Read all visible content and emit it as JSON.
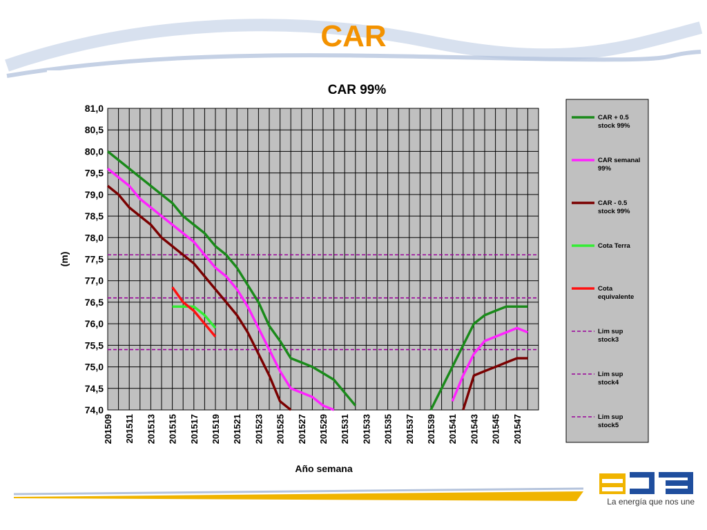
{
  "slide": {
    "title": "CAR",
    "tagline": "La energía que nos une",
    "accent_color": "#f39200"
  },
  "chart_data": {
    "type": "line",
    "title": "CAR 99%",
    "xlabel": "Año semana",
    "ylabel": "(m)",
    "ylim": [
      74.0,
      81.0
    ],
    "yticks": [
      "74,0",
      "74,5",
      "75,0",
      "75,5",
      "76,0",
      "76,5",
      "77,0",
      "77,5",
      "78,0",
      "78,5",
      "79,0",
      "79,5",
      "80,0",
      "80,5",
      "81,0"
    ],
    "categories": [
      "201509",
      "201510",
      "201511",
      "201512",
      "201513",
      "201514",
      "201515",
      "201516",
      "201517",
      "201518",
      "201519",
      "201520",
      "201521",
      "201522",
      "201523",
      "201524",
      "201525",
      "201526",
      "201527",
      "201528",
      "201529",
      "201530",
      "201531",
      "201532",
      "201533",
      "201534",
      "201535",
      "201536",
      "201537",
      "201538",
      "201539",
      "201540",
      "201541",
      "201542",
      "201543",
      "201544",
      "201545",
      "201546",
      "201547",
      "201548"
    ],
    "xtick_labels": [
      "201509",
      "201511",
      "201513",
      "201515",
      "201517",
      "201519",
      "201521",
      "201523",
      "201525",
      "201527",
      "201529",
      "201531",
      "201533",
      "201535",
      "201537",
      "201539",
      "201541",
      "201543",
      "201545",
      "201547"
    ],
    "grid": true,
    "background_color": "#c0c0c0",
    "legend_position": "right",
    "series": [
      {
        "name": "CAR + 0.5 stock 99%",
        "color": "#1a8a1a",
        "style": "solid",
        "values": [
          80.0,
          79.8,
          79.6,
          79.4,
          79.2,
          79.0,
          78.8,
          78.5,
          78.3,
          78.1,
          77.8,
          77.6,
          77.3,
          76.9,
          76.5,
          75.95,
          75.6,
          75.2,
          75.1,
          75.0,
          74.85,
          74.7,
          74.4,
          74.1,
          null,
          null,
          null,
          null,
          null,
          null,
          74.0,
          74.5,
          75.0,
          75.5,
          76.0,
          76.2,
          76.3,
          76.4,
          76.4,
          76.4
        ]
      },
      {
        "name": "CAR semanal 99%",
        "color": "#ff22ff",
        "style": "solid",
        "values": [
          79.6,
          79.4,
          79.2,
          78.9,
          78.7,
          78.5,
          78.3,
          78.1,
          77.9,
          77.6,
          77.3,
          77.1,
          76.8,
          76.4,
          75.9,
          75.4,
          74.9,
          74.5,
          74.4,
          74.3,
          74.1,
          74.0,
          null,
          null,
          null,
          null,
          null,
          null,
          null,
          null,
          null,
          null,
          74.2,
          74.8,
          75.3,
          75.6,
          75.7,
          75.8,
          75.9,
          75.8
        ]
      },
      {
        "name": "CAR - 0.5 stock 99%",
        "color": "#7a0000",
        "style": "solid",
        "values": [
          79.2,
          79.0,
          78.7,
          78.5,
          78.3,
          78.0,
          77.8,
          77.6,
          77.4,
          77.1,
          76.8,
          76.5,
          76.2,
          75.8,
          75.3,
          74.8,
          74.2,
          74.0,
          null,
          null,
          null,
          null,
          null,
          null,
          null,
          null,
          null,
          null,
          null,
          null,
          null,
          null,
          null,
          74.0,
          74.8,
          74.9,
          75.0,
          75.1,
          75.2,
          75.2
        ]
      },
      {
        "name": "Cota Terra",
        "color": "#33ee33",
        "style": "solid",
        "values": [
          null,
          null,
          null,
          null,
          null,
          null,
          76.4,
          76.4,
          76.4,
          76.2,
          75.9,
          null,
          null,
          null,
          null,
          null,
          null,
          null,
          null,
          null,
          null,
          null,
          null,
          null,
          null,
          null,
          null,
          null,
          null,
          null,
          null,
          null,
          null,
          null,
          null,
          null,
          null,
          null,
          null,
          null
        ]
      },
      {
        "name": "Cota equivalente",
        "color": "#ff1111",
        "style": "solid",
        "values": [
          null,
          null,
          null,
          null,
          null,
          null,
          76.85,
          76.5,
          76.3,
          76.0,
          75.7,
          null,
          null,
          null,
          null,
          null,
          null,
          null,
          null,
          null,
          null,
          null,
          null,
          null,
          null,
          null,
          null,
          null,
          null,
          null,
          null,
          null,
          null,
          null,
          null,
          null,
          null,
          null,
          null,
          null
        ]
      },
      {
        "name": "Lim sup stock3",
        "color": "#990099",
        "style": "dashed",
        "constant": 77.6
      },
      {
        "name": "Lim sup stock4",
        "color": "#990099",
        "style": "dashed",
        "constant": 76.6
      },
      {
        "name": "Lim sup stock5",
        "color": "#990099",
        "style": "dashed",
        "constant": 75.4
      }
    ]
  }
}
